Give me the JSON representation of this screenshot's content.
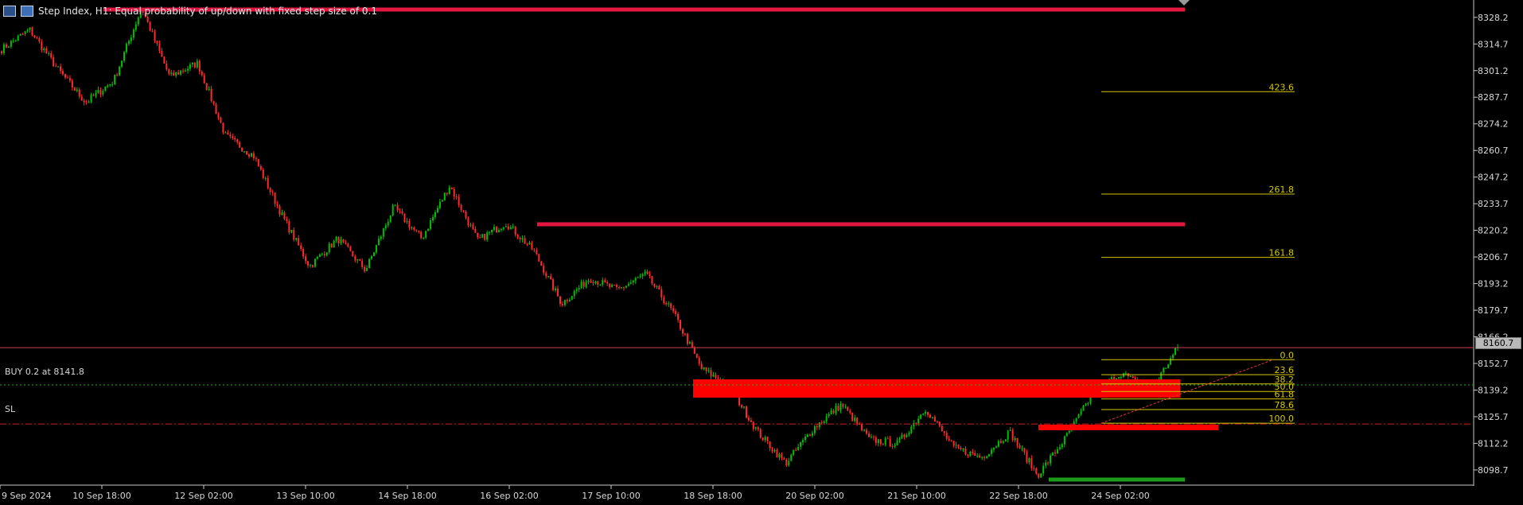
{
  "header": {
    "title": "Step Index, H1:  Equal probability of up/down with fixed step size of 0.1"
  },
  "price_axis": {
    "ticks": [
      "8328.2",
      "8314.7",
      "8301.2",
      "8287.7",
      "8274.2",
      "8260.7",
      "8247.2",
      "8233.7",
      "8220.2",
      "8206.7",
      "8193.2",
      "8179.7",
      "8166.2",
      "8152.7",
      "8139.2",
      "8125.7",
      "8112.2",
      "8098.7"
    ],
    "current_price": "8160.7"
  },
  "time_axis": {
    "ticks": [
      "9 Sep 2024",
      "10 Sep 18:00",
      "12 Sep 02:00",
      "13 Sep 10:00",
      "14 Sep 18:00",
      "16 Sep 02:00",
      "17 Sep 10:00",
      "18 Sep 18:00",
      "20 Sep 02:00",
      "21 Sep 10:00",
      "22 Sep 18:00",
      "24 Sep 02:00"
    ]
  },
  "trade": {
    "buy_label": "BUY 0.2 at 8141.8",
    "buy_price": 8141.8,
    "sl_label": "SL",
    "sl_price": 8122.0
  },
  "fibonacci": {
    "levels": [
      {
        "label": "423.6",
        "price": 8290.5
      },
      {
        "label": "261.8",
        "price": 8238.6
      },
      {
        "label": "161.8",
        "price": 8206.5
      },
      {
        "label": "0.0",
        "price": 8154.6
      },
      {
        "label": "23.6",
        "price": 8147.0
      },
      {
        "label": "38.2",
        "price": 8142.3
      },
      {
        "label": "50.0",
        "price": 8138.5
      },
      {
        "label": "61.8",
        "price": 8134.7
      },
      {
        "label": "78.6",
        "price": 8129.3
      },
      {
        "label": "100.0",
        "price": 8122.4
      }
    ]
  },
  "colors": {
    "bull": "#00c000",
    "bear": "#ff2a2a",
    "zone": "#ff0000",
    "resistance_line": "#e2163f",
    "support_line": "#1c9a1c",
    "fib": "#d4c800",
    "current_line": "#d04050"
  },
  "chart_data": {
    "type": "candlestick",
    "symbol": "Step Index",
    "timeframe": "H1",
    "ylim": [
      8091,
      8337
    ],
    "points": [
      {
        "x": "9 Sep 2024",
        "y": 8312
      },
      {
        "x": "10 Sep 02:00",
        "y": 8322
      },
      {
        "x": "10 Sep 14:00",
        "y": 8302
      },
      {
        "x": "11 Sep 02:00",
        "y": 8285
      },
      {
        "x": "11 Sep 12:00",
        "y": 8296
      },
      {
        "x": "11 Sep 20:00",
        "y": 8333
      },
      {
        "x": "12 Sep 02:00",
        "y": 8298
      },
      {
        "x": "12 Sep 10:00",
        "y": 8305
      },
      {
        "x": "12 Sep 20:00",
        "y": 8268
      },
      {
        "x": "13 Sep 04:00",
        "y": 8258
      },
      {
        "x": "13 Sep 10:00",
        "y": 8228
      },
      {
        "x": "13 Sep 18:00",
        "y": 8202
      },
      {
        "x": "14 Sep 02:00",
        "y": 8216
      },
      {
        "x": "14 Sep 08:00",
        "y": 8200
      },
      {
        "x": "14 Sep 18:00",
        "y": 8232
      },
      {
        "x": "15 Sep 02:00",
        "y": 8216
      },
      {
        "x": "15 Sep 10:00",
        "y": 8243
      },
      {
        "x": "15 Sep 18:00",
        "y": 8215
      },
      {
        "x": "16 Sep 02:00",
        "y": 8224
      },
      {
        "x": "16 Sep 10:00",
        "y": 8210
      },
      {
        "x": "16 Sep 20:00",
        "y": 8183
      },
      {
        "x": "17 Sep 04:00",
        "y": 8196
      },
      {
        "x": "17 Sep 10:00",
        "y": 8190
      },
      {
        "x": "17 Sep 18:00",
        "y": 8198
      },
      {
        "x": "18 Sep 02:00",
        "y": 8178
      },
      {
        "x": "18 Sep 10:00",
        "y": 8150
      },
      {
        "x": "18 Sep 18:00",
        "y": 8141
      },
      {
        "x": "19 Sep 02:00",
        "y": 8118
      },
      {
        "x": "19 Sep 12:00",
        "y": 8102
      },
      {
        "x": "20 Sep 02:00",
        "y": 8120
      },
      {
        "x": "20 Sep 10:00",
        "y": 8132
      },
      {
        "x": "20 Sep 20:00",
        "y": 8114
      },
      {
        "x": "21 Sep 06:00",
        "y": 8112
      },
      {
        "x": "21 Sep 14:00",
        "y": 8130
      },
      {
        "x": "22 Sep 00:00",
        "y": 8110
      },
      {
        "x": "22 Sep 10:00",
        "y": 8105
      },
      {
        "x": "22 Sep 18:00",
        "y": 8118
      },
      {
        "x": "23 Sep 02:00",
        "y": 8096
      },
      {
        "x": "23 Sep 10:00",
        "y": 8115
      },
      {
        "x": "23 Sep 18:00",
        "y": 8138
      },
      {
        "x": "24 Sep 02:00",
        "y": 8148
      },
      {
        "x": "24 Sep 08:00",
        "y": 8138
      },
      {
        "x": "24 Sep 12:00",
        "y": 8160.7
      }
    ]
  }
}
